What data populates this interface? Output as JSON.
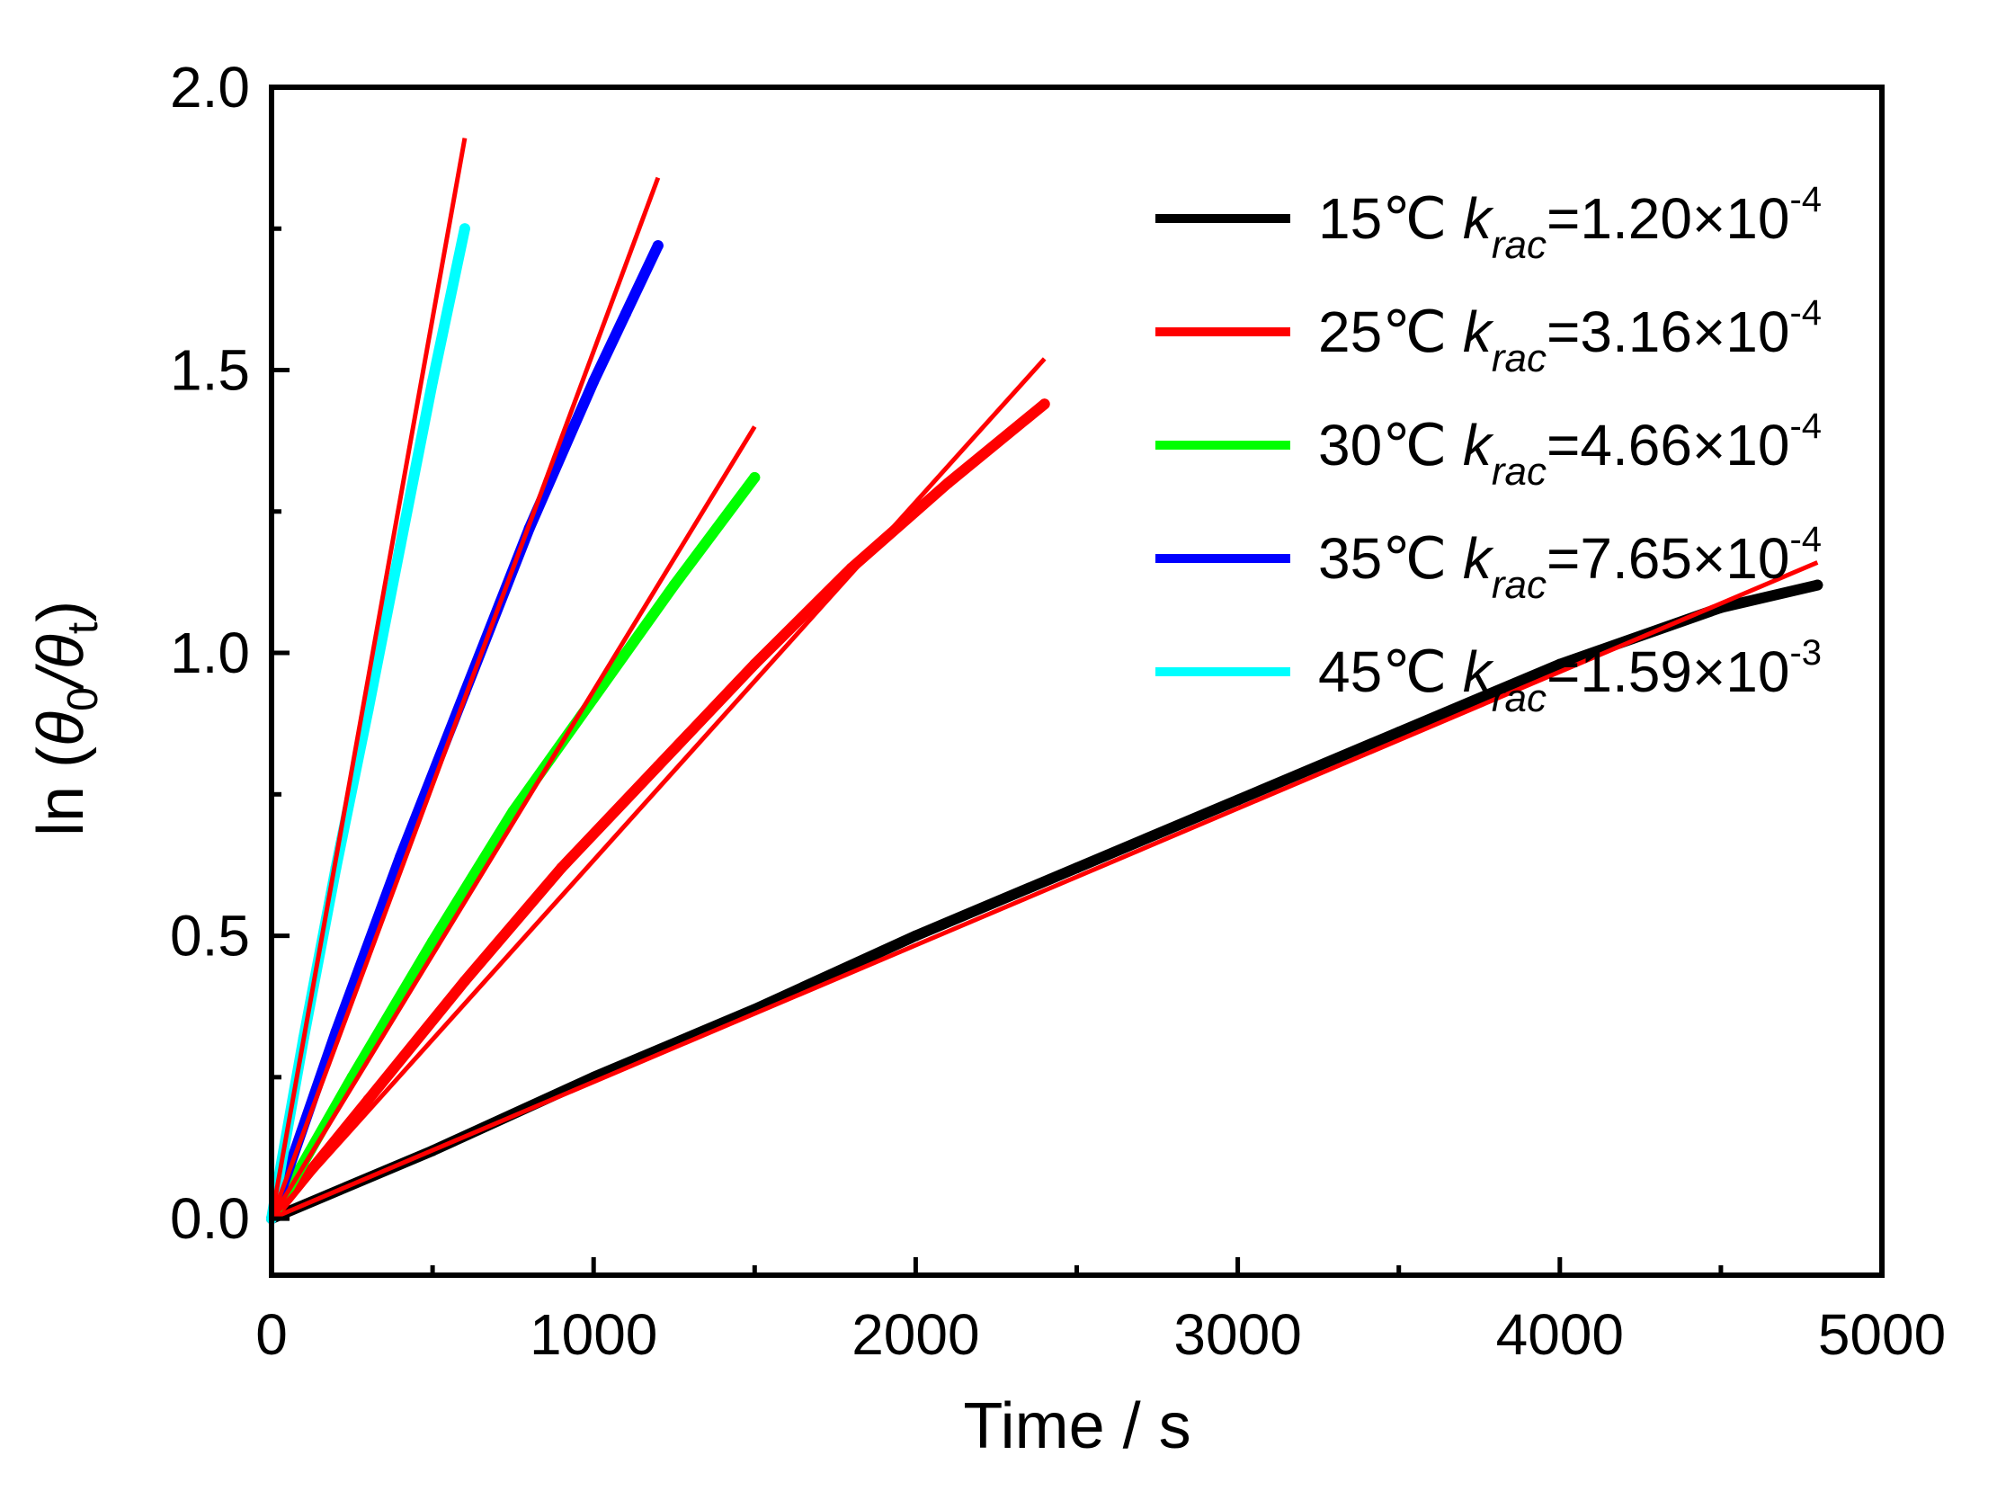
{
  "chart_data": {
    "type": "line",
    "title": "",
    "xlabel": "Time / s",
    "ylabel": {
      "prefix": "ln (",
      "theta": "θ",
      "sub0": "0",
      "slash": "/",
      "subt": "t",
      "suffix": ")"
    },
    "xlim": [
      0,
      5000
    ],
    "ylim": [
      -0.1,
      2.0
    ],
    "x_ticks": [
      0,
      1000,
      2000,
      3000,
      4000,
      5000
    ],
    "x_tick_labels": [
      "0",
      "1000",
      "2000",
      "3000",
      "4000",
      "5000"
    ],
    "y_ticks": [
      0.0,
      0.5,
      1.0,
      1.5,
      2.0
    ],
    "y_tick_labels": [
      "0.0",
      "0.5",
      "1.0",
      "1.5",
      "2.0"
    ],
    "grid": false,
    "legend_position": "top-right",
    "fit_color": "#ff0000",
    "series": [
      {
        "name": "15℃",
        "temp": "15℃",
        "k_symbol": "k",
        "k_sub": "rac",
        "k_value": "=1.20×10",
        "k_exp": "-4",
        "color": "#000000",
        "x": [
          0,
          500,
          1000,
          1500,
          2000,
          2500,
          3000,
          3500,
          4000,
          4500,
          4800
        ],
        "y": [
          0.0,
          0.12,
          0.25,
          0.37,
          0.5,
          0.62,
          0.74,
          0.86,
          0.98,
          1.08,
          1.12
        ],
        "fit": {
          "x": [
            0,
            4800
          ],
          "y": [
            0.0,
            1.16
          ]
        }
      },
      {
        "name": "25℃",
        "temp": "25℃",
        "k_symbol": "k",
        "k_sub": "rac",
        "k_value": "=3.16×10",
        "k_exp": "-4",
        "color": "#ff0000",
        "x": [
          0,
          300,
          600,
          900,
          1200,
          1500,
          1800,
          2100,
          2400
        ],
        "y": [
          0.0,
          0.21,
          0.42,
          0.62,
          0.8,
          0.98,
          1.15,
          1.3,
          1.44
        ],
        "fit": {
          "x": [
            0,
            2400
          ],
          "y": [
            0.0,
            1.52
          ]
        }
      },
      {
        "name": "30℃",
        "temp": "30℃",
        "k_symbol": "k",
        "k_sub": "rac",
        "k_value": "=4.66×10",
        "k_exp": "-4",
        "color": "#00ff00",
        "x": [
          0,
          250,
          500,
          750,
          1000,
          1250,
          1500
        ],
        "y": [
          0.0,
          0.25,
          0.49,
          0.72,
          0.92,
          1.12,
          1.31
        ],
        "fit": {
          "x": [
            0,
            1500
          ],
          "y": [
            0.0,
            1.4
          ]
        }
      },
      {
        "name": "35℃",
        "temp": "35℃",
        "k_symbol": "k",
        "k_sub": "rac",
        "k_value": "=7.65×10",
        "k_exp": "-4",
        "color": "#0000ff",
        "x": [
          0,
          200,
          400,
          600,
          800,
          1000,
          1100,
          1200
        ],
        "y": [
          0.0,
          0.33,
          0.64,
          0.93,
          1.22,
          1.48,
          1.6,
          1.72
        ],
        "fit": {
          "x": [
            0,
            1200
          ],
          "y": [
            0.0,
            1.84
          ]
        }
      },
      {
        "name": "45℃",
        "temp": "45℃",
        "k_symbol": "k",
        "k_sub": "rac",
        "k_value": "=1.59×10",
        "k_exp": "-3",
        "color": "#00ffff",
        "x": [
          0,
          100,
          200,
          300,
          400,
          500,
          600
        ],
        "y": [
          0.0,
          0.32,
          0.62,
          0.9,
          1.19,
          1.48,
          1.75
        ],
        "fit": {
          "x": [
            0,
            600
          ],
          "y": [
            0.0,
            1.91
          ]
        }
      }
    ]
  }
}
